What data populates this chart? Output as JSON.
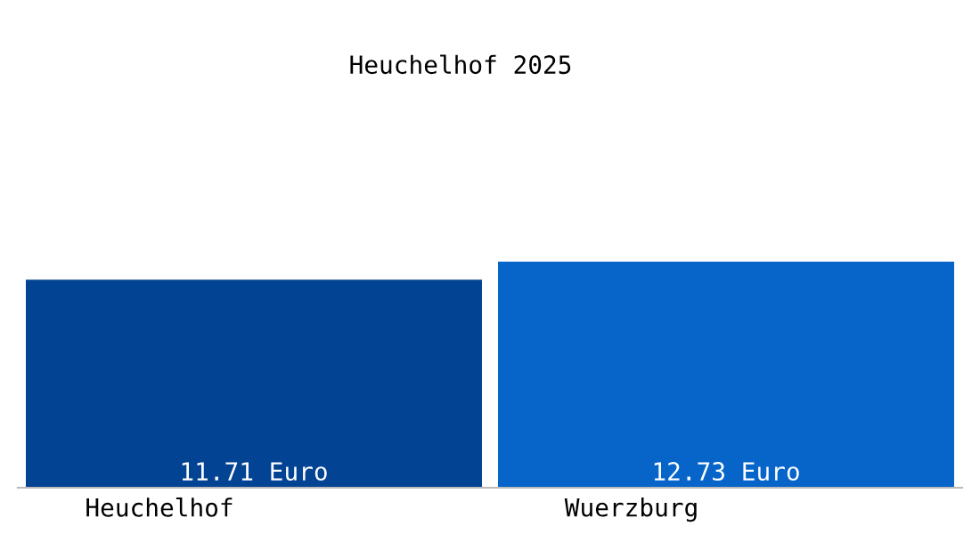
{
  "chart_data": {
    "type": "bar",
    "title": "Heuchelhof 2025",
    "categories": [
      "Heuchelhof",
      "Wuerzburg"
    ],
    "values": [
      11.71,
      12.73
    ],
    "value_labels": [
      "11.71 Euro",
      "12.73 Euro"
    ],
    "colors": [
      "#034393",
      "#0764c8"
    ],
    "grid": false,
    "legend": false
  }
}
